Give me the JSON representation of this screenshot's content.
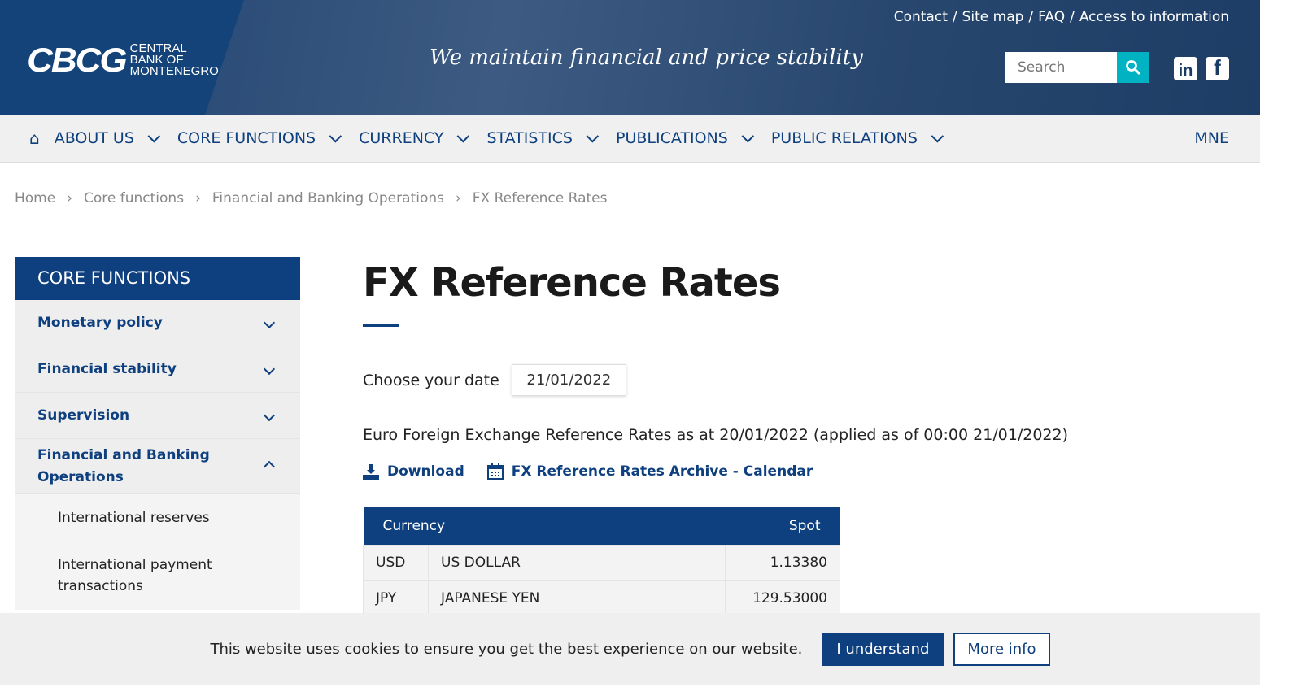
{
  "header": {
    "logo_mark": "CBCG",
    "logo_name": [
      "CENTRAL",
      "BANK OF",
      "MONTENEGRO"
    ],
    "tagline": "We maintain financial and price stability",
    "top_links": [
      "Contact",
      "Site map",
      "FAQ",
      "Access to information"
    ],
    "search_placeholder": "Search"
  },
  "nav": {
    "items": [
      "ABOUT US",
      "CORE FUNCTIONS",
      "CURRENCY",
      "STATISTICS",
      "PUBLICATIONS",
      "PUBLIC RELATIONS"
    ],
    "language": "MNE"
  },
  "breadcrumb": [
    "Home",
    "Core functions",
    "Financial and Banking Operations",
    "FX Reference Rates"
  ],
  "sidebar": {
    "title": "CORE FUNCTIONS",
    "items": [
      "Monetary policy",
      "Financial stability",
      "Supervision",
      "Financial and Banking Operations"
    ],
    "subitems": [
      "International reserves",
      "International payment transactions"
    ]
  },
  "main": {
    "title": "FX Reference Rates",
    "date_label": "Choose your date",
    "date_value": "21/01/2022",
    "description": "Euro Foreign Exchange Reference Rates as at 20/01/2022 (applied as of 00:00 21/01/2022)",
    "download": "Download",
    "archive": "FX Reference Rates Archive - Calendar",
    "table": {
      "headers": [
        "Currency",
        "Spot"
      ],
      "rows": [
        {
          "code": "USD",
          "name": "US DOLLAR",
          "spot": "1.13380"
        },
        {
          "code": "JPY",
          "name": "JAPANESE YEN",
          "spot": "129.53000"
        }
      ]
    }
  },
  "cookie": {
    "text": "This website uses cookies to ensure you get the best experience on our website.",
    "accept": "I understand",
    "more": "More info"
  },
  "colors": {
    "primary": "#0e3f7e",
    "accent": "#00b2c2"
  }
}
